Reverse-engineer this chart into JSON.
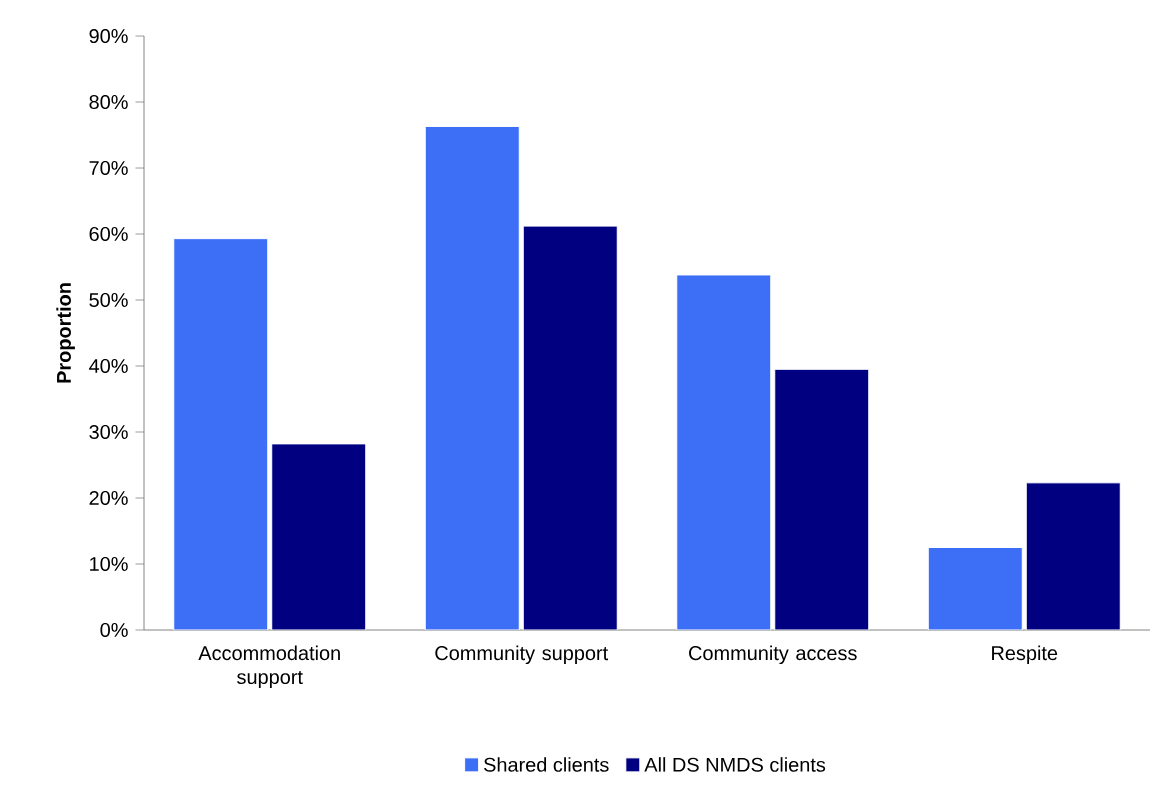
{
  "chart_data": {
    "type": "bar",
    "ylabel": "Proportion",
    "categories": [
      "Accommodation support",
      "Community support",
      "Community access",
      "Respite"
    ],
    "series": [
      {
        "name": "Shared clients",
        "color": "#3d6ef6",
        "values": [
          59.3,
          76.3,
          53.8,
          12.5
        ]
      },
      {
        "name": "All DS NMDS clients",
        "color": "#000080",
        "values": [
          28.2,
          61.2,
          39.5,
          22.3
        ]
      }
    ],
    "ylim": [
      0,
      90
    ],
    "yticks": [
      {
        "value": 0,
        "label": "0%"
      },
      {
        "value": 10,
        "label": "10%"
      },
      {
        "value": 20,
        "label": "20%"
      },
      {
        "value": 30,
        "label": "30%"
      },
      {
        "value": 40,
        "label": "40%"
      },
      {
        "value": 50,
        "label": "50%"
      },
      {
        "value": 60,
        "label": "60%"
      },
      {
        "value": 70,
        "label": "70%"
      },
      {
        "value": 80,
        "label": "80%"
      },
      {
        "value": 90,
        "label": "90%"
      }
    ],
    "grid": false,
    "legend": "bottom"
  }
}
